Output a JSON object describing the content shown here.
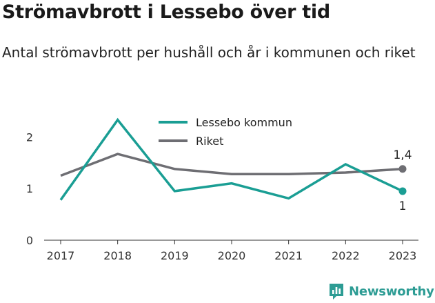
{
  "title": "Strömavbrott i Lessebo över tid",
  "subtitle": "Antal strömavbrott per hushåll och år i kommunen och riket",
  "brand": "Newsworthy",
  "chart_data": {
    "type": "line",
    "x": [
      2017,
      2018,
      2019,
      2020,
      2021,
      2022,
      2023
    ],
    "ylim": [
      0,
      2.5
    ],
    "yticks": [
      0,
      1,
      2
    ],
    "ytick_labels": [
      "0",
      "1",
      "2"
    ],
    "xtick_labels": [
      "2017",
      "2018",
      "2019",
      "2020",
      "2021",
      "2022",
      "2023"
    ],
    "grid": false,
    "legend_position": "top-center",
    "series": [
      {
        "name": "Lessebo kommun",
        "color": "#1a9e94",
        "values": [
          0.78,
          2.33,
          0.95,
          1.1,
          0.81,
          1.47,
          0.95
        ],
        "end_label": "1",
        "end_label_position": "below"
      },
      {
        "name": "Riket",
        "color": "#6e6e73",
        "values": [
          1.25,
          1.67,
          1.38,
          1.28,
          1.28,
          1.31,
          1.38
        ],
        "end_label": "1,4",
        "end_label_position": "above"
      }
    ]
  }
}
